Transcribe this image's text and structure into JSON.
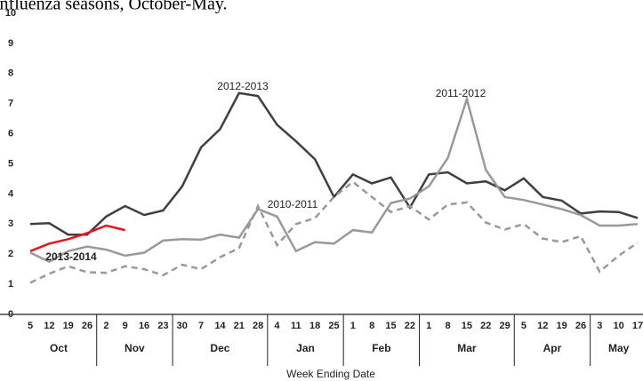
{
  "chart_data": {
    "type": "line",
    "title": "influenza seasons, October-May.",
    "x_label": "Week Ending Date",
    "categories": [
      "5",
      "12",
      "19",
      "26",
      "2",
      "9",
      "16",
      "23",
      "30",
      "7",
      "14",
      "21",
      "28",
      "4",
      "11",
      "18",
      "25",
      "1",
      "8",
      "15",
      "22",
      "1",
      "8",
      "15",
      "22",
      "29",
      "5",
      "12",
      "19",
      "26",
      "3",
      "10",
      "17"
    ],
    "x_groups": [
      {
        "label": "Oct",
        "size": 4
      },
      {
        "label": "Nov",
        "size": 4
      },
      {
        "label": "Dec",
        "size": 5
      },
      {
        "label": "Jan",
        "size": 4
      },
      {
        "label": "Feb",
        "size": 4
      },
      {
        "label": "Mar",
        "size": 5
      },
      {
        "label": "Apr",
        "size": 4
      },
      {
        "label": "May",
        "size": 3
      }
    ],
    "ylim": [
      0,
      10
    ],
    "yticks": [
      0,
      1,
      2,
      3,
      4,
      5,
      6,
      7,
      8,
      9,
      10
    ],
    "grid": false,
    "series": [
      {
        "name": "2012-2013",
        "color": "#404040",
        "dashed": false,
        "values": [
          3.0,
          3.03,
          2.65,
          2.65,
          3.25,
          3.6,
          3.3,
          3.45,
          4.25,
          5.55,
          6.15,
          7.35,
          7.25,
          6.3,
          5.75,
          5.15,
          3.9,
          4.65,
          4.35,
          4.55,
          3.55,
          4.65,
          4.72,
          4.35,
          4.42,
          4.12,
          4.52,
          3.9,
          3.78,
          3.35,
          3.42,
          3.4,
          3.2
        ]
      },
      {
        "name": "2011-2012",
        "color": "#999999",
        "dashed": false,
        "values": [
          2.05,
          1.75,
          2.1,
          2.25,
          2.15,
          1.95,
          2.05,
          2.45,
          2.5,
          2.48,
          2.65,
          2.55,
          3.5,
          3.25,
          2.1,
          2.4,
          2.35,
          2.8,
          2.72,
          3.7,
          3.85,
          4.25,
          5.2,
          7.15,
          4.8,
          3.9,
          3.8,
          3.65,
          3.5,
          3.3,
          2.95,
          2.95,
          3.0
        ]
      },
      {
        "name": "2010-2011",
        "color": "#999999",
        "dashed": true,
        "values": [
          1.05,
          1.35,
          1.6,
          1.4,
          1.38,
          1.6,
          1.5,
          1.3,
          1.65,
          1.5,
          1.9,
          2.2,
          3.6,
          2.3,
          3.0,
          3.2,
          3.9,
          4.4,
          3.9,
          3.4,
          3.6,
          3.15,
          3.65,
          3.72,
          3.05,
          2.82,
          3.0,
          2.52,
          2.4,
          2.6,
          1.42,
          1.95,
          2.38
        ]
      },
      {
        "name": "2013-2014",
        "color": "#e8141b",
        "dashed": false,
        "values": [
          2.1,
          2.35,
          2.5,
          2.7,
          2.95,
          2.8,
          null,
          null,
          null,
          null,
          null,
          null,
          null,
          null,
          null,
          null,
          null,
          null,
          null,
          null,
          null,
          null,
          null,
          null,
          null,
          null,
          null,
          null,
          null,
          null,
          null,
          null,
          null
        ]
      }
    ]
  }
}
